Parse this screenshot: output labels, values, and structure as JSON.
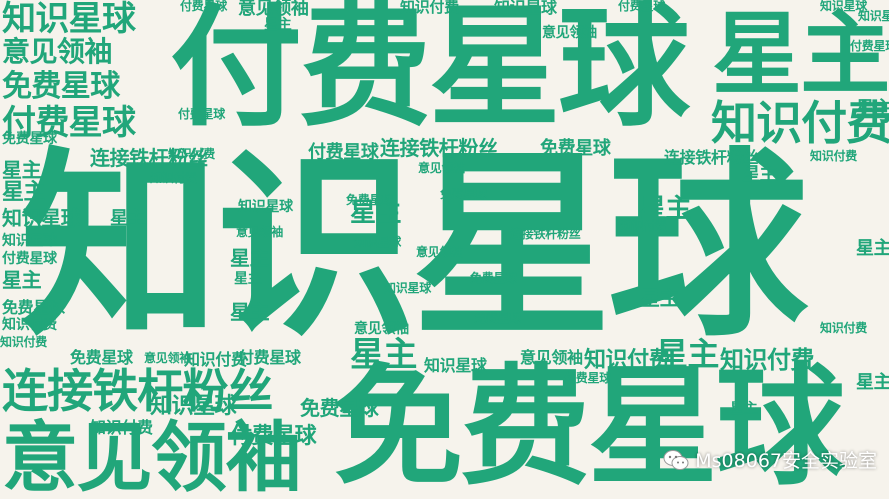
{
  "watermark": {
    "text": "Ms08067安全实验室",
    "icon": "wechat-icon"
  },
  "colors": {
    "text": "#21a67a",
    "background": "#f6f3ec"
  },
  "words": [
    {
      "text": "知识星球"
    },
    {
      "text": "付费星球"
    },
    {
      "text": "免费星球"
    },
    {
      "text": "意见领袖"
    },
    {
      "text": "连接铁杆粉丝"
    },
    {
      "text": "星主"
    },
    {
      "text": "知识付费"
    },
    {
      "text": "知识付费"
    },
    {
      "text": "知识星球"
    },
    {
      "text": "意见领袖"
    },
    {
      "text": "免费星球"
    },
    {
      "text": "付费星球"
    },
    {
      "text": "连接铁杆粉丝"
    },
    {
      "text": "连接铁杆粉丝"
    },
    {
      "text": "免费星球"
    },
    {
      "text": "付费星球"
    },
    {
      "text": "知识付费"
    },
    {
      "text": "知识星球"
    },
    {
      "text": "意见领袖"
    },
    {
      "text": "知识付费"
    },
    {
      "text": "星主"
    },
    {
      "text": "星主"
    },
    {
      "text": "星主"
    },
    {
      "text": "星主"
    },
    {
      "text": "星主"
    },
    {
      "text": "星主"
    },
    {
      "text": "免费星球"
    },
    {
      "text": "知识付费"
    },
    {
      "text": "付费星球"
    },
    {
      "text": "知识星球"
    },
    {
      "text": "付费星球"
    },
    {
      "text": "免费星球"
    },
    {
      "text": "意见领袖"
    },
    {
      "text": "知识星球"
    },
    {
      "text": "付费星球"
    },
    {
      "text": "知识星球"
    },
    {
      "text": "付费星球"
    },
    {
      "text": "连接铁杆粉丝"
    },
    {
      "text": "免费星球"
    },
    {
      "text": "星主"
    },
    {
      "text": "星主"
    },
    {
      "text": "星主"
    },
    {
      "text": "星主"
    },
    {
      "text": "星主"
    },
    {
      "text": "星主"
    },
    {
      "text": "知识星球"
    },
    {
      "text": "免费星球"
    },
    {
      "text": "意见领袖"
    },
    {
      "text": "意见领袖"
    },
    {
      "text": "付费星球"
    },
    {
      "text": "知识付费"
    },
    {
      "text": "免费星球"
    },
    {
      "text": "知识星球"
    },
    {
      "text": "知识付费"
    },
    {
      "text": "星主"
    },
    {
      "text": "星主"
    },
    {
      "text": "知识星球"
    },
    {
      "text": "意见领袖"
    },
    {
      "text": "星主"
    },
    {
      "text": "意见领袖"
    },
    {
      "text": "免费星球"
    },
    {
      "text": "知识付费"
    },
    {
      "text": "知识付费"
    },
    {
      "text": "知识星球"
    },
    {
      "text": "付费星球"
    },
    {
      "text": "意见领袖"
    },
    {
      "text": "星主"
    },
    {
      "text": "知识付费"
    },
    {
      "text": "付费星球"
    },
    {
      "text": "连接铁杆粉丝"
    },
    {
      "text": "免费星球"
    },
    {
      "text": "知识付费"
    },
    {
      "text": "知识星球"
    },
    {
      "text": "知识付费"
    },
    {
      "text": "意见领袖"
    },
    {
      "text": "星主"
    },
    {
      "text": "知识付费"
    },
    {
      "text": "知识星球"
    },
    {
      "text": "免费星球"
    },
    {
      "text": "付费星球"
    },
    {
      "text": "星主"
    }
  ]
}
